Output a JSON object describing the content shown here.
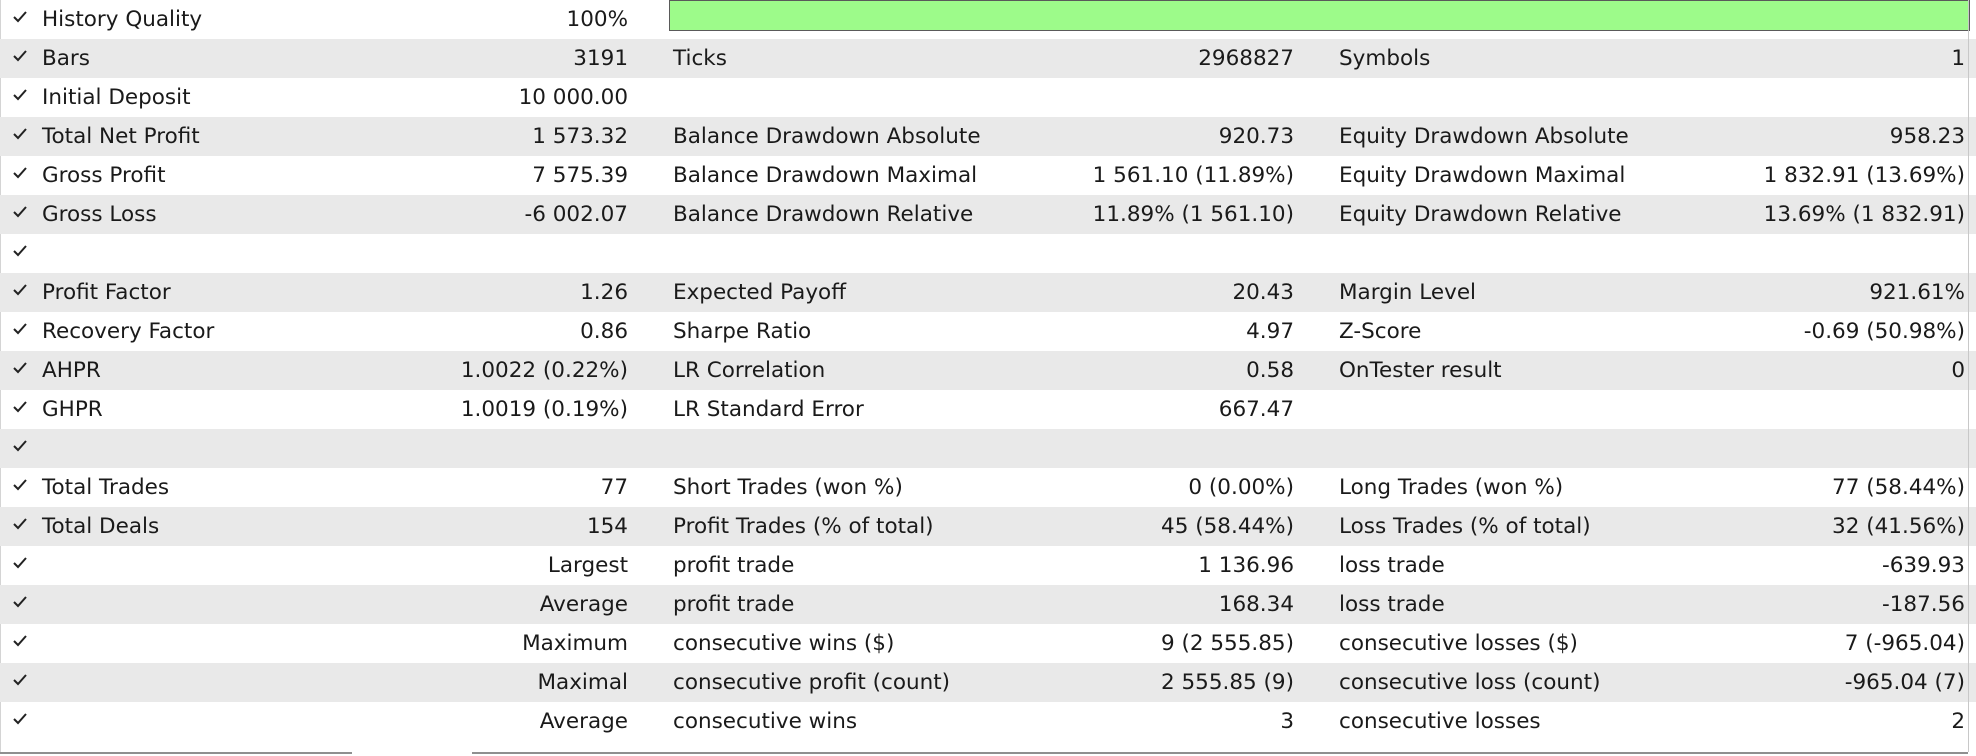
{
  "history_quality": {
    "label": "History Quality",
    "value": "100%",
    "fill_fraction": 1.0,
    "bar_color": "#9dfb8a"
  },
  "rows": [
    {
      "label1": "Bars",
      "value1": "3191",
      "label2": "Ticks",
      "value2": "2968827",
      "label3": "Symbols",
      "value3": "1"
    },
    {
      "label1": "Initial Deposit",
      "value1": "10 000.00",
      "label2": "",
      "value2": "",
      "label3": "",
      "value3": ""
    },
    {
      "label1": "Total Net Profit",
      "value1": "1 573.32",
      "label2": "Balance Drawdown Absolute",
      "value2": "920.73",
      "label3": "Equity Drawdown Absolute",
      "value3": "958.23"
    },
    {
      "label1": "Gross Profit",
      "value1": "7 575.39",
      "label2": "Balance Drawdown Maximal",
      "value2": "1 561.10 (11.89%)",
      "label3": "Equity Drawdown Maximal",
      "value3": "1 832.91 (13.69%)"
    },
    {
      "label1": "Gross Loss",
      "value1": "-6 002.07",
      "label2": "Balance Drawdown Relative",
      "value2": "11.89% (1 561.10)",
      "label3": "Equity Drawdown Relative",
      "value3": "13.69% (1 832.91)"
    },
    {
      "label1": "",
      "value1": "",
      "label2": "",
      "value2": "",
      "label3": "",
      "value3": ""
    },
    {
      "label1": "Profit Factor",
      "value1": "1.26",
      "label2": "Expected Payoff",
      "value2": "20.43",
      "label3": "Margin Level",
      "value3": "921.61%"
    },
    {
      "label1": "Recovery Factor",
      "value1": "0.86",
      "label2": "Sharpe Ratio",
      "value2": "4.97",
      "label3": "Z-Score",
      "value3": "-0.69 (50.98%)"
    },
    {
      "label1": "AHPR",
      "value1": "1.0022 (0.22%)",
      "label2": "LR Correlation",
      "value2": "0.58",
      "label3": "OnTester result",
      "value3": "0"
    },
    {
      "label1": "GHPR",
      "value1": "1.0019 (0.19%)",
      "label2": "LR Standard Error",
      "value2": "667.47",
      "label3": "",
      "value3": ""
    },
    {
      "label1": "",
      "value1": "",
      "label2": "",
      "value2": "",
      "label3": "",
      "value3": ""
    },
    {
      "label1": "Total Trades",
      "value1": "77",
      "label2": "Short Trades (won %)",
      "value2": "0 (0.00%)",
      "label3": "Long Trades (won %)",
      "value3": "77 (58.44%)"
    },
    {
      "label1": "Total Deals",
      "value1": "154",
      "label2": "Profit Trades (% of total)",
      "value2": "45 (58.44%)",
      "label3": "Loss Trades (% of total)",
      "value3": "32 (41.56%)"
    },
    {
      "label1": "",
      "value1": "Largest",
      "label2": "profit trade",
      "value2": "1 136.96",
      "label3": "loss trade",
      "value3": "-639.93"
    },
    {
      "label1": "",
      "value1": "Average",
      "label2": "profit trade",
      "value2": "168.34",
      "label3": "loss trade",
      "value3": "-187.56"
    },
    {
      "label1": "",
      "value1": "Maximum",
      "label2": "consecutive wins ($)",
      "value2": "9 (2 555.85)",
      "label3": "consecutive losses ($)",
      "value3": "7 (-965.04)"
    },
    {
      "label1": "",
      "value1": "Maximal",
      "label2": "consecutive profit (count)",
      "value2": "2 555.85 (9)",
      "label3": "consecutive loss (count)",
      "value3": "-965.04 (7)"
    },
    {
      "label1": "",
      "value1": "Average",
      "label2": "consecutive wins",
      "value2": "3",
      "label3": "consecutive losses",
      "value3": "2"
    }
  ],
  "icons": {
    "row_check": "checkmark-icon"
  }
}
